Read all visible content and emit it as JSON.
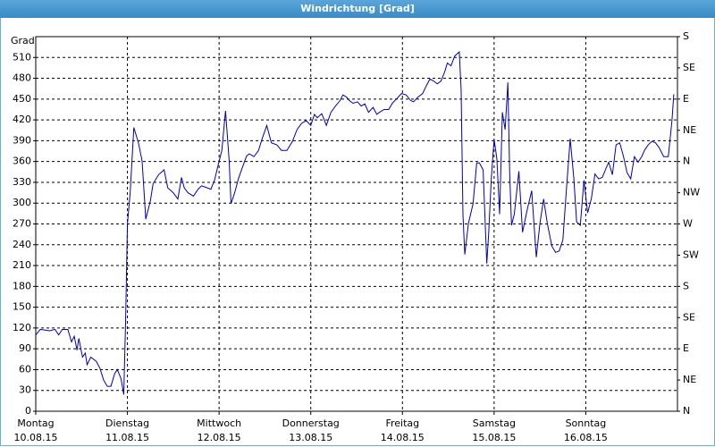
{
  "chart_data": {
    "type": "line",
    "title": "Windrichtung [Grad]",
    "ylabel": "Grad",
    "xlim": [
      0,
      7
    ],
    "xticks": [
      {
        "value": 0,
        "label": "Montag\n10.08.15"
      },
      {
        "value": 1,
        "label": "Dienstag\n11.08.15"
      },
      {
        "value": 2,
        "label": "Mittwoch\n12.08.15"
      },
      {
        "value": 3,
        "label": "Donnerstag\n13.08.15"
      },
      {
        "value": 4,
        "label": "Freitag\n14.08.15"
      },
      {
        "value": 5,
        "label": "Samstag\n15.08.15"
      },
      {
        "value": 6,
        "label": "Sonntag\n16.08.15"
      }
    ],
    "ylim": [
      0,
      540
    ],
    "yticks": [
      0,
      30,
      60,
      90,
      120,
      150,
      180,
      210,
      240,
      270,
      300,
      330,
      360,
      390,
      420,
      450,
      480,
      510
    ],
    "y2lim": [
      0,
      540
    ],
    "y2ticks": [
      {
        "value": 0,
        "label": "N"
      },
      {
        "value": 45,
        "label": "NE"
      },
      {
        "value": 90,
        "label": "E"
      },
      {
        "value": 135,
        "label": "SE"
      },
      {
        "value": 180,
        "label": "S"
      },
      {
        "value": 225,
        "label": "SW"
      },
      {
        "value": 270,
        "label": "W"
      },
      {
        "value": 315,
        "label": "NW"
      },
      {
        "value": 360,
        "label": "N"
      },
      {
        "value": 405,
        "label": "NE"
      },
      {
        "value": 450,
        "label": "E"
      },
      {
        "value": 495,
        "label": "SE"
      },
      {
        "value": 540,
        "label": "S"
      }
    ],
    "grid": true,
    "x": [
      0,
      0.05,
      0.15,
      0.21,
      0.25,
      0.29,
      0.35,
      0.39,
      0.42,
      0.45,
      0.47,
      0.51,
      0.54,
      0.56,
      0.6,
      0.66,
      0.7,
      0.74,
      0.78,
      0.82,
      0.86,
      0.89,
      0.93,
      0.96,
      0.98,
      1,
      1.03,
      1.07,
      1.12,
      1.16,
      1.2,
      1.25,
      1.28,
      1.34,
      1.4,
      1.44,
      1.5,
      1.55,
      1.59,
      1.62,
      1.66,
      1.72,
      1.77,
      1.81,
      1.87,
      1.91,
      1.95,
      1.99,
      2.03,
      2.07,
      2.11,
      2.13,
      2.17,
      2.21,
      2.25,
      2.3,
      2.33,
      2.38,
      2.43,
      2.47,
      2.52,
      2.57,
      2.63,
      2.68,
      2.74,
      2.8,
      2.85,
      2.9,
      2.95,
      3,
      3.04,
      3.07,
      3.12,
      3.17,
      3.22,
      3.27,
      3.32,
      3.35,
      3.39,
      3.42,
      3.46,
      3.51,
      3.55,
      3.59,
      3.63,
      3.68,
      3.72,
      3.75,
      3.8,
      3.85,
      3.89,
      3.94,
      3.99,
      4.04,
      4.09,
      4.12,
      4.17,
      4.22,
      4.26,
      4.3,
      4.34,
      4.38,
      4.42,
      4.46,
      4.49,
      4.53,
      4.57,
      4.62,
      4.64,
      4.66,
      4.68,
      4.72,
      4.77,
      4.81,
      4.84,
      4.88,
      4.92,
      4.94,
      4.97,
      5,
      5.03,
      5.06,
      5.09,
      5.12,
      5.15,
      5.17,
      5.19,
      5.22,
      5.27,
      5.31,
      5.36,
      5.41,
      5.46,
      5.5,
      5.54,
      5.58,
      5.63,
      5.67,
      5.71,
      5.75,
      5.79,
      5.83,
      5.87,
      5.9,
      5.94,
      5.98,
      6.02,
      6.06,
      6.1,
      6.14,
      6.18,
      6.22,
      6.25,
      6.29,
      6.33,
      6.37,
      6.41,
      6.45,
      6.49,
      6.53,
      6.57,
      6.61,
      6.64,
      6.68,
      6.72,
      6.76,
      6.8,
      6.85,
      6.9,
      6.94,
      6.96
    ],
    "series": [
      {
        "color": "#0000b0",
        "values": [
          110,
          118,
          116,
          118,
          110,
          118,
          118,
          100,
          108,
          88,
          105,
          78,
          84,
          67,
          78,
          72,
          62,
          45,
          36,
          36,
          54,
          60,
          47,
          24,
          129,
          270,
          315,
          409,
          387,
          361,
          277,
          303,
          328,
          341,
          348,
          322,
          315,
          306,
          337,
          322,
          315,
          310,
          320,
          325,
          322,
          320,
          333,
          355,
          376,
          433,
          361,
          299,
          315,
          335,
          350,
          368,
          371,
          367,
          376,
          393,
          412,
          387,
          384,
          376,
          376,
          389,
          406,
          415,
          419,
          412,
          428,
          423,
          429,
          412,
          431,
          440,
          448,
          456,
          453,
          448,
          444,
          446,
          440,
          443,
          431,
          438,
          428,
          431,
          435,
          435,
          444,
          451,
          458,
          456,
          448,
          446,
          453,
          458,
          469,
          479,
          476,
          472,
          476,
          489,
          502,
          498,
          512,
          518,
          464,
          284,
          226,
          271,
          299,
          358,
          358,
          348,
          213,
          255,
          337,
          392,
          364,
          284,
          431,
          406,
          474,
          341,
          268,
          284,
          346,
          258,
          290,
          318,
          222,
          271,
          306,
          271,
          238,
          229,
          231,
          247,
          322,
          393,
          335,
          273,
          268,
          333,
          286,
          306,
          342,
          335,
          337,
          350,
          359,
          341,
          384,
          387,
          368,
          344,
          335,
          367,
          359,
          367,
          376,
          384,
          389,
          387,
          380,
          367,
          367,
          419,
          457
        ]
      }
    ]
  }
}
